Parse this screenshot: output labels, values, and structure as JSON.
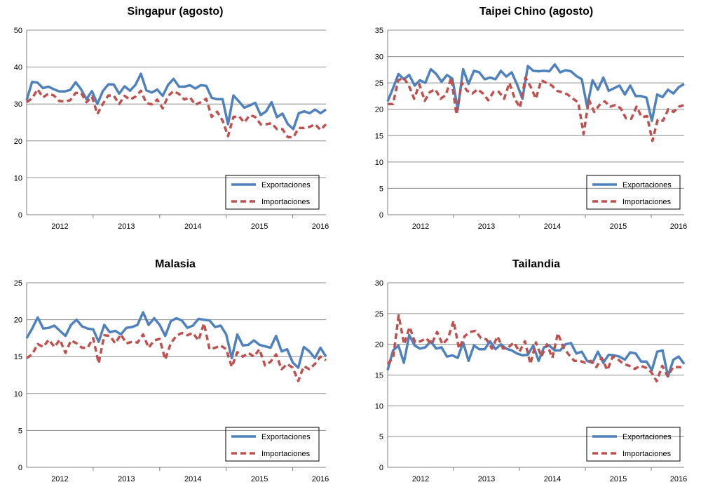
{
  "colors": {
    "exports": "#4f81bd",
    "imports": "#c0504d"
  },
  "chart_data": [
    {
      "type": "line",
      "title": "Singapur (agosto)",
      "ylim": [
        0,
        50
      ],
      "yticks": [
        0,
        10,
        20,
        30,
        40,
        50
      ],
      "xticklabels": [
        "2012",
        "2013",
        "2014",
        "2015",
        "2016"
      ],
      "grid": true,
      "legend": "bottom-right",
      "series": [
        {
          "name": "Exportaciones",
          "style": "solid",
          "values": [
            31,
            36,
            35.8,
            34.3,
            34.7,
            34,
            33.4,
            33.4,
            33.8,
            35.9,
            34,
            31.3,
            33.5,
            30,
            33.5,
            35.3,
            35.3,
            32.8,
            34.8,
            33.6,
            35.2,
            38.2,
            33.7,
            33.1,
            33.9,
            32.2,
            35.2,
            36.8,
            34.7,
            34.7,
            35.1,
            34.2,
            35.1,
            34.9,
            31.7,
            31.3,
            31.3,
            24.5,
            32.3,
            30.7,
            29,
            29.6,
            30.3,
            27,
            28,
            30.5,
            26.4,
            27.4,
            24.5,
            23.2,
            27.5,
            28,
            27.5,
            28.5,
            27.5,
            28.5
          ]
        },
        {
          "name": "Importaciones",
          "style": "dashed",
          "values": [
            30.5,
            31.5,
            34,
            31.8,
            32.8,
            32.3,
            30.8,
            30.7,
            31,
            33,
            33,
            30.5,
            32,
            27.3,
            30,
            32.3,
            32.3,
            30,
            32.2,
            31.2,
            32,
            33.6,
            30.2,
            29.9,
            31.2,
            28.8,
            32.2,
            33.5,
            32.7,
            31.2,
            31.8,
            29.8,
            30.5,
            31.4,
            26.5,
            27.9,
            25.5,
            21.3,
            26.5,
            26.7,
            25,
            27,
            26.5,
            24.5,
            24.5,
            24.8,
            23.2,
            23.2,
            21,
            21,
            23.5,
            23.5,
            23.8,
            24.5,
            23,
            24.5
          ]
        }
      ]
    },
    {
      "type": "line",
      "title": "Taipei Chino (agosto)",
      "ylim": [
        0,
        35
      ],
      "yticks": [
        0,
        5,
        10,
        15,
        20,
        25,
        30,
        35
      ],
      "xticklabels": [
        "2012",
        "2013",
        "2014",
        "2015",
        "2016"
      ],
      "grid": true,
      "legend": "bottom-right",
      "series": [
        {
          "name": "Exportaciones",
          "style": "solid",
          "values": [
            21.5,
            24,
            26.7,
            25.7,
            26.5,
            24.5,
            25.5,
            25,
            27.6,
            26.7,
            25.2,
            26.5,
            25.8,
            20,
            27.6,
            24.8,
            27.3,
            27,
            25.7,
            26,
            25.7,
            27.3,
            26.2,
            27,
            24.7,
            22,
            28.2,
            27.3,
            27.2,
            27.3,
            27.2,
            28.5,
            27,
            27.4,
            27.2,
            26.3,
            25.7,
            20.5,
            25.5,
            23.7,
            26,
            23.5,
            24,
            24.5,
            22.8,
            24.5,
            22.5,
            22.5,
            22.2,
            17.8,
            22.8,
            22.3,
            23.7,
            23,
            24.2,
            24.8
          ]
        },
        {
          "name": "Importaciones",
          "style": "dashed",
          "values": [
            21,
            21,
            25.5,
            26,
            24.5,
            22,
            24.7,
            21.6,
            23.3,
            23.8,
            22,
            22.7,
            26,
            19,
            25,
            23.5,
            23,
            23.8,
            23,
            21.7,
            23.3,
            23.3,
            22,
            25,
            22,
            20.3,
            26,
            24.3,
            22,
            25.5,
            25,
            24.5,
            23.5,
            23.2,
            22.8,
            22,
            21.3,
            15.3,
            21.8,
            19.5,
            20.8,
            21.5,
            20.5,
            20.8,
            20.2,
            18.3,
            18.2,
            20.5,
            18.5,
            18.7,
            14,
            18,
            17.8,
            20,
            19.5,
            20.5,
            20.8
          ]
        }
      ]
    },
    {
      "type": "line",
      "title": "Malasia",
      "ylim": [
        0,
        25
      ],
      "yticks": [
        0,
        5,
        10,
        15,
        20,
        25
      ],
      "xticklabels": [
        "2012",
        "2013",
        "2014",
        "2015",
        "2016"
      ],
      "grid": true,
      "legend": "bottom-right",
      "series": [
        {
          "name": "Exportaciones",
          "style": "solid",
          "values": [
            17.5,
            18.8,
            20.3,
            18.8,
            18.9,
            19.2,
            18.5,
            17.8,
            19.3,
            20,
            19.1,
            18.8,
            18.7,
            17,
            19.3,
            18.3,
            18.5,
            18,
            18.9,
            19,
            19.3,
            21,
            19.3,
            20.2,
            19.3,
            17.8,
            19.8,
            20.2,
            19.9,
            18.9,
            19.2,
            20.1,
            20,
            19.9,
            19,
            19.2,
            18,
            14.8,
            18,
            16.5,
            16.6,
            17.2,
            16.6,
            16.4,
            16.2,
            17.8,
            15.7,
            16,
            14.2,
            13.5,
            16.3,
            15.7,
            14.8,
            16.2,
            15
          ]
        },
        {
          "name": "Importaciones",
          "style": "dashed",
          "values": [
            14.8,
            15.3,
            16.7,
            16.3,
            17.3,
            16.3,
            17.3,
            15.5,
            17.2,
            16.8,
            16.2,
            16.2,
            17.5,
            14.1,
            17.9,
            17.8,
            16.8,
            18,
            16.8,
            17,
            16.9,
            18,
            16.2,
            17.2,
            17.4,
            14.6,
            16.8,
            17.8,
            18.2,
            17.9,
            18.2,
            17.2,
            19.5,
            16,
            16.2,
            16.5,
            16,
            13.6,
            15.6,
            15,
            15.5,
            15,
            16,
            13.8,
            14.3,
            15.3,
            13.3,
            14,
            13.5,
            11.7,
            13.7,
            13.3,
            14,
            15,
            14.5
          ]
        }
      ]
    },
    {
      "type": "line",
      "title": "Tailandia",
      "ylim": [
        0,
        30
      ],
      "yticks": [
        0,
        5,
        10,
        15,
        20,
        25,
        30
      ],
      "xticklabels": [
        "2012",
        "2013",
        "2014",
        "2015",
        "2016"
      ],
      "grid": true,
      "legend": "bottom-right",
      "series": [
        {
          "name": "Exportaciones",
          "style": "solid",
          "values": [
            15.8,
            19,
            19.8,
            17,
            21.5,
            19.8,
            19.3,
            19.5,
            20.5,
            19.3,
            19.5,
            18,
            18.2,
            17.8,
            20.3,
            17.3,
            19.8,
            19.2,
            19.2,
            20.5,
            19.2,
            20,
            19.3,
            19,
            18.5,
            18.2,
            18.3,
            19.8,
            17.3,
            19.5,
            19.8,
            19,
            19,
            20,
            20.2,
            18.5,
            18.8,
            17.3,
            17,
            18.8,
            17,
            18.3,
            18.2,
            18,
            17.5,
            18.7,
            18.5,
            17.2,
            17.2,
            15.8,
            18.8,
            19,
            14.8,
            17.5,
            18,
            16.8
          ]
        },
        {
          "name": "Importaciones",
          "style": "dashed",
          "values": [
            16.8,
            17.8,
            24.7,
            20,
            22.8,
            20.3,
            20.5,
            21,
            20,
            22,
            20,
            21,
            23.8,
            19.3,
            21.3,
            22,
            22.2,
            21,
            20.8,
            19.3,
            21.3,
            19.3,
            19.5,
            20.3,
            18.8,
            20.5,
            16.8,
            20.3,
            18,
            20,
            17.8,
            21.8,
            19.5,
            18.3,
            17.3,
            17.3,
            17,
            17.3,
            16.3,
            17.8,
            15.8,
            18,
            17.5,
            16.8,
            16.5,
            16,
            16.5,
            16.2,
            15.5,
            14,
            16.5,
            14.8,
            16.3,
            16.3,
            16.2
          ]
        }
      ]
    }
  ]
}
